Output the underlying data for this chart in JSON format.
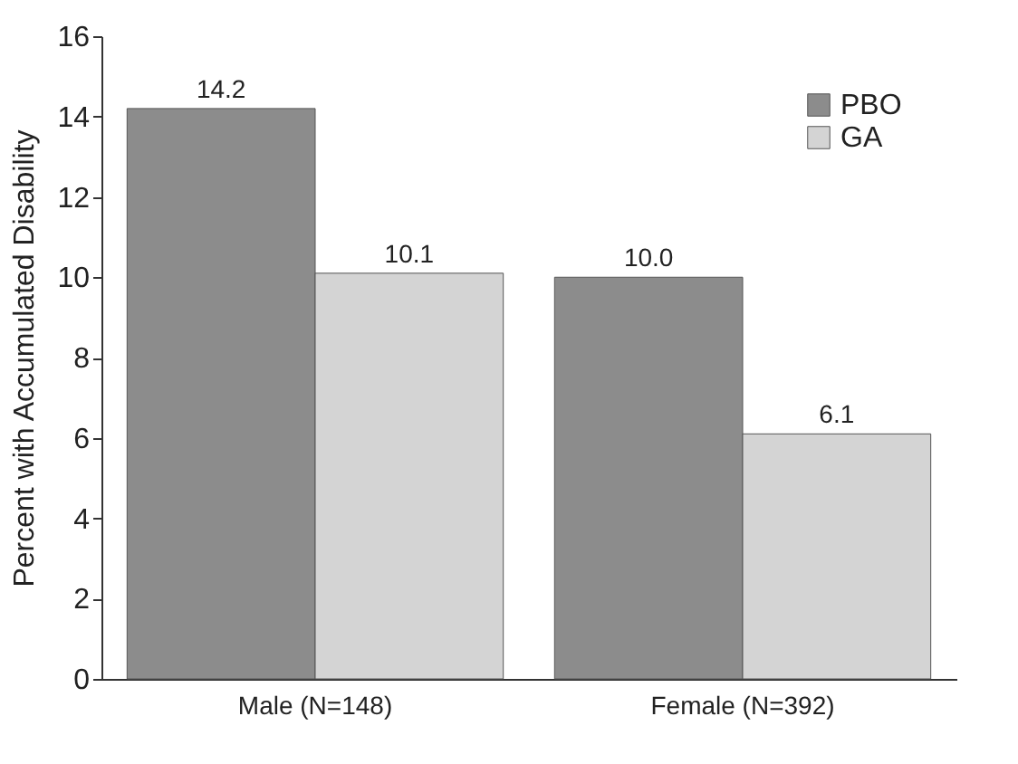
{
  "chart_data": {
    "type": "bar",
    "ylabel": "Percent with Accumulated Disability",
    "categories": [
      "Male (N=148)",
      "Female (N=392)"
    ],
    "series": [
      {
        "name": "PBO",
        "color": "#8c8c8c",
        "values": [
          14.2,
          10.0
        ],
        "value_labels": [
          "14.2",
          "10.0"
        ]
      },
      {
        "name": "GA",
        "color": "#d4d4d4",
        "values": [
          10.1,
          6.1
        ],
        "value_labels": [
          "10.1",
          "6.1"
        ]
      }
    ],
    "ylim": [
      0,
      16
    ],
    "yticks": [
      0,
      2,
      4,
      6,
      8,
      10,
      12,
      14,
      16
    ],
    "grid": false,
    "legend": "top right"
  }
}
